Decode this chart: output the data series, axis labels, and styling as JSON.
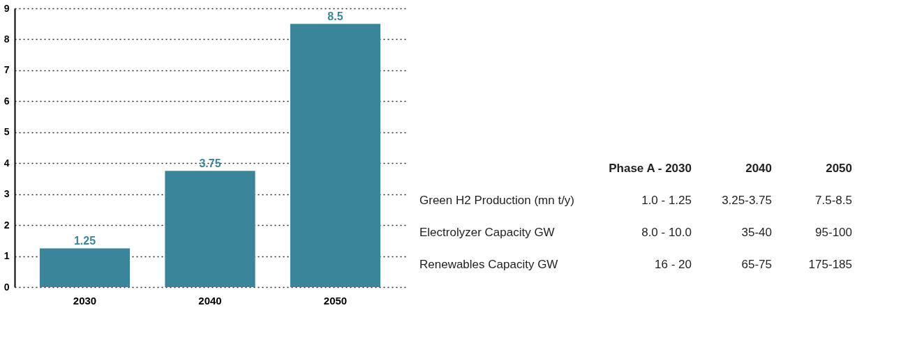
{
  "chart_data": [
    {
      "type": "bar",
      "categories": [
        "2030",
        "2040",
        "2050"
      ],
      "values": [
        1.25,
        3.75,
        8.5
      ],
      "color": "#3a8599",
      "ylim": [
        0,
        9
      ],
      "yticks": [
        0,
        1,
        2,
        3,
        4,
        5,
        6,
        7,
        8,
        9
      ],
      "grid": "y",
      "data_labels": true
    },
    {
      "type": "other",
      "annotations": [
        "Phase A - 2030",
        "2040",
        "2050",
        "Green H2 Production (mn t/y)",
        "1.0 - 1.25",
        "3.25-3.75",
        "7.5-8.5",
        "Electrolyzer Capacity GW",
        "8.0 - 10.0",
        "35-40",
        "95-100",
        "Renewables Capacity GW",
        "16 - 20",
        "65-75",
        "175-185"
      ]
    }
  ]
}
